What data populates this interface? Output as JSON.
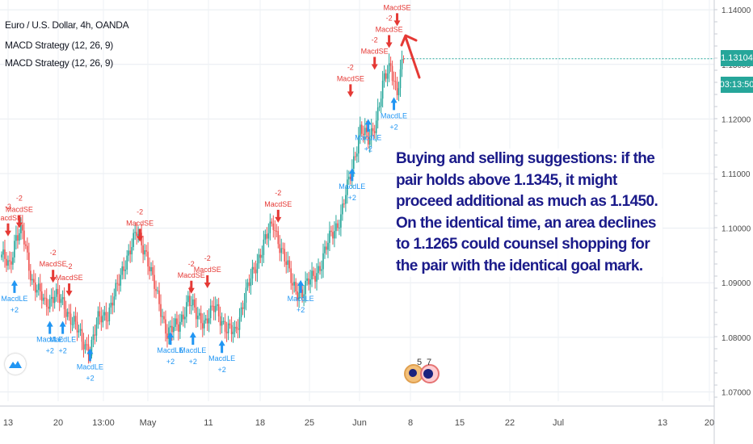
{
  "legend": {
    "symbol": "Euro / U.S. Dollar, 4h, OANDA",
    "indicator1": "MACD Strategy (12, 26, 9)",
    "indicator2": "MACD Strategy (12, 26, 9)"
  },
  "price_badges": {
    "last_price": "1.13104",
    "countdown": "03:13:50",
    "last_price_color": "#26a69a",
    "countdown_color": "#26a69a"
  },
  "annotation": {
    "text": "Buying and selling suggestions: if the pair holds above 1.1345, it might proceed additional as much as 1.1450. On the identical time, an area declines to 1.1265 could counsel shopping for the pair with the identical goal mark."
  },
  "badges": {
    "count1": "5",
    "count2": "7"
  },
  "chart_data": {
    "type": "candlestick",
    "symbol": "EURUSD",
    "timeframe": "4h",
    "y_ticks": [
      "1.14000",
      "1.13000",
      "1.12000",
      "1.11000",
      "1.10000",
      "1.09000",
      "1.08000",
      "1.07000"
    ],
    "ylim": [
      1.068,
      1.1415
    ],
    "x_tick_labels": [
      "13",
      "20",
      "13:00",
      "May",
      "11",
      "18",
      "25",
      "Jun",
      "8",
      "15",
      "22",
      "Jul",
      "13",
      "20"
    ],
    "grid": true,
    "colors": {
      "up": "#26a69a",
      "down": "#ef5350",
      "buy": "#2196f3",
      "sell": "#e53935"
    },
    "path_anchors": [
      {
        "i": 0,
        "p": 1.0945
      },
      {
        "i": 5,
        "p": 1.0935
      },
      {
        "i": 9,
        "p": 1.0985
      },
      {
        "i": 13,
        "p": 1.099
      },
      {
        "i": 19,
        "p": 1.0905
      },
      {
        "i": 27,
        "p": 1.086
      },
      {
        "i": 33,
        "p": 1.088
      },
      {
        "i": 40,
        "p": 1.085
      },
      {
        "i": 45,
        "p": 1.083
      },
      {
        "i": 50,
        "p": 1.079
      },
      {
        "i": 55,
        "p": 1.078
      },
      {
        "i": 60,
        "p": 1.083
      },
      {
        "i": 66,
        "p": 1.0845
      },
      {
        "i": 72,
        "p": 1.089
      },
      {
        "i": 78,
        "p": 1.095
      },
      {
        "i": 84,
        "p": 1.099
      },
      {
        "i": 90,
        "p": 1.0955
      },
      {
        "i": 96,
        "p": 1.088
      },
      {
        "i": 103,
        "p": 1.081
      },
      {
        "i": 110,
        "p": 1.082
      },
      {
        "i": 116,
        "p": 1.087
      },
      {
        "i": 121,
        "p": 1.084
      },
      {
        "i": 127,
        "p": 1.083
      },
      {
        "i": 133,
        "p": 1.0855
      },
      {
        "i": 140,
        "p": 1.0815
      },
      {
        "i": 145,
        "p": 1.0805
      },
      {
        "i": 151,
        "p": 1.0875
      },
      {
        "i": 157,
        "p": 1.092
      },
      {
        "i": 163,
        "p": 1.0975
      },
      {
        "i": 169,
        "p": 1.1005
      },
      {
        "i": 175,
        "p": 1.0955
      },
      {
        "i": 181,
        "p": 1.0895
      },
      {
        "i": 187,
        "p": 1.088
      },
      {
        "i": 193,
        "p": 1.091
      },
      {
        "i": 199,
        "p": 1.0935
      },
      {
        "i": 205,
        "p": 1.099
      },
      {
        "i": 211,
        "p": 1.102
      },
      {
        "i": 217,
        "p": 1.11
      },
      {
        "i": 223,
        "p": 1.118
      },
      {
        "i": 228,
        "p": 1.116
      },
      {
        "i": 233,
        "p": 1.12
      },
      {
        "i": 238,
        "p": 1.127
      },
      {
        "i": 242,
        "p": 1.13
      },
      {
        "i": 246,
        "p": 1.125
      },
      {
        "i": 250,
        "p": 1.131
      }
    ],
    "signals": [
      {
        "type": "sell",
        "label": "MacdSE",
        "qty": "-2",
        "i": 4,
        "price": 1.0985
      },
      {
        "type": "sell",
        "label": "MacdSE",
        "qty": "-2",
        "i": 11,
        "price": 1.1
      },
      {
        "type": "buy",
        "label": "MacdLE",
        "qty": "+2",
        "i": 8,
        "price": 1.0905
      },
      {
        "type": "sell",
        "label": "MacdSE",
        "qty": "-2",
        "i": 32,
        "price": 1.09
      },
      {
        "type": "sell",
        "label": "MacdSE",
        "qty": "-2",
        "i": 42,
        "price": 1.0875
      },
      {
        "type": "buy",
        "label": "MacdLE",
        "qty": "+2",
        "i": 30,
        "price": 1.083
      },
      {
        "type": "buy",
        "label": "MacdLE",
        "qty": "+2",
        "i": 38,
        "price": 1.083
      },
      {
        "type": "buy",
        "label": "MacdLE",
        "qty": "+2",
        "i": 55,
        "price": 1.078
      },
      {
        "type": "sell",
        "label": "MacdSE",
        "qty": "-2",
        "i": 86,
        "price": 1.0975
      },
      {
        "type": "buy",
        "label": "MacdLE",
        "qty": "+2",
        "i": 105,
        "price": 1.081
      },
      {
        "type": "sell",
        "label": "MacdSE",
        "qty": "-2",
        "i": 118,
        "price": 1.088
      },
      {
        "type": "buy",
        "label": "MacdLE",
        "qty": "+2",
        "i": 119,
        "price": 1.081
      },
      {
        "type": "sell",
        "label": "MacdSE",
        "qty": "-2",
        "i": 128,
        "price": 1.089
      },
      {
        "type": "buy",
        "label": "MacdLE",
        "qty": "+2",
        "i": 137,
        "price": 1.0795
      },
      {
        "type": "sell",
        "label": "MacdSE",
        "qty": "-2",
        "i": 172,
        "price": 1.101
      },
      {
        "type": "buy",
        "label": "MacdLE",
        "qty": "+2",
        "i": 186,
        "price": 1.0905
      },
      {
        "type": "sell",
        "label": "MacdSE",
        "qty": "-2",
        "i": 217,
        "price": 1.124
      },
      {
        "type": "sell",
        "label": "MacdSE",
        "qty": "-2",
        "i": 232,
        "price": 1.129
      },
      {
        "type": "buy",
        "label": "MacdLE",
        "qty": "+2",
        "i": 218,
        "price": 1.111
      },
      {
        "type": "buy",
        "label": "MacdLE",
        "qty": "+2",
        "i": 228,
        "price": 1.12
      },
      {
        "type": "sell",
        "label": "MacdSE",
        "qty": "-2",
        "i": 241,
        "price": 1.133
      },
      {
        "type": "sell",
        "label": "MacdSE",
        "qty": "-2",
        "i": 246,
        "price": 1.137
      },
      {
        "type": "buy",
        "label": "MacdLE",
        "qty": "+2",
        "i": 244,
        "price": 1.124
      }
    ]
  }
}
